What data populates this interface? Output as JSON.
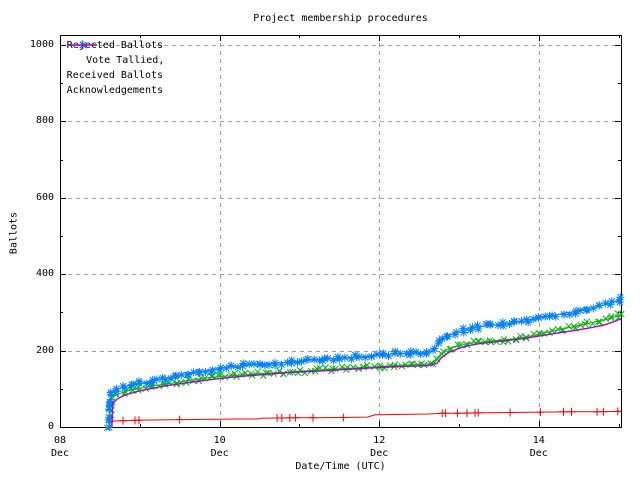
{
  "chart_data": {
    "type": "line",
    "title": "Project membership procedures",
    "xlabel": "Date/Time (UTC)",
    "ylabel": "Ballots",
    "x_unit": "day of December (UTC)",
    "xlim": [
      8,
      15.03
    ],
    "ylim": [
      0,
      1026
    ],
    "grid": true,
    "legend_position": "top-left-inside",
    "background_color": "#ffffff",
    "axis_color": "#000000",
    "grid_color": "#a0a0a0",
    "y_ticks": [
      {
        "v": 0,
        "label": "0"
      },
      {
        "v": 200,
        "label": "200"
      },
      {
        "v": 400,
        "label": "400"
      },
      {
        "v": 600,
        "label": "600"
      },
      {
        "v": 800,
        "label": "800"
      },
      {
        "v": 1000,
        "label": "1000"
      }
    ],
    "y_minor_ticks": [
      100,
      300,
      500,
      700,
      900
    ],
    "x_ticks": [
      {
        "v": 8,
        "line1": "08",
        "line2": "Dec"
      },
      {
        "v": 10,
        "line1": "10",
        "line2": "Dec"
      },
      {
        "v": 12,
        "line1": "12",
        "line2": "Dec"
      },
      {
        "v": 14,
        "line1": "14",
        "line2": "Dec"
      }
    ],
    "x_minor_ticks": [
      9,
      11,
      13,
      15
    ],
    "series": [
      {
        "name": "Rejected Ballots",
        "color": "#ff0000",
        "marker": "plus",
        "dense_markers": false,
        "points": [
          [
            8.62,
            0
          ],
          [
            8.63,
            14
          ],
          [
            8.7,
            16
          ],
          [
            8.9,
            17
          ],
          [
            9.0,
            18
          ],
          [
            9.4,
            19
          ],
          [
            9.8,
            20
          ],
          [
            10.2,
            21
          ],
          [
            10.48,
            21
          ],
          [
            10.52,
            23
          ],
          [
            10.9,
            24
          ],
          [
            11.2,
            24
          ],
          [
            11.6,
            25
          ],
          [
            11.85,
            26
          ],
          [
            11.95,
            32
          ],
          [
            12.3,
            33
          ],
          [
            12.62,
            34
          ],
          [
            12.8,
            36
          ],
          [
            13.0,
            36
          ],
          [
            13.22,
            37
          ],
          [
            13.64,
            38
          ],
          [
            14.05,
            39
          ],
          [
            14.44,
            40
          ],
          [
            14.8,
            40
          ],
          [
            15.03,
            41
          ]
        ],
        "marker_days": [
          8.79,
          8.94,
          8.99,
          9.5,
          10.72,
          10.78,
          10.88,
          10.95,
          11.17,
          11.55,
          12.79,
          12.83,
          12.98,
          13.1,
          13.2,
          13.24,
          13.64,
          14.02,
          14.31,
          14.41,
          14.73,
          14.81,
          14.99
        ]
      },
      {
        "name": "    Vote Tallied,",
        "color": "#00b800",
        "marker": "cross",
        "dense_markers": true,
        "points": [
          [
            8.61,
            0
          ],
          [
            8.63,
            45
          ],
          [
            8.64,
            72
          ],
          [
            8.7,
            84
          ],
          [
            8.8,
            92
          ],
          [
            8.9,
            97
          ],
          [
            9.0,
            101
          ],
          [
            9.15,
            107
          ],
          [
            9.3,
            112
          ],
          [
            9.45,
            116
          ],
          [
            9.6,
            121
          ],
          [
            9.75,
            126
          ],
          [
            9.9,
            130
          ],
          [
            10.0,
            132
          ],
          [
            10.2,
            135
          ],
          [
            10.4,
            138
          ],
          [
            10.6,
            141
          ],
          [
            10.8,
            143
          ],
          [
            11.0,
            146
          ],
          [
            11.2,
            148
          ],
          [
            11.4,
            151
          ],
          [
            11.6,
            153
          ],
          [
            11.8,
            156
          ],
          [
            12.0,
            158
          ],
          [
            12.2,
            161
          ],
          [
            12.4,
            163
          ],
          [
            12.55,
            164
          ],
          [
            12.66,
            166
          ],
          [
            12.72,
            180
          ],
          [
            12.8,
            196
          ],
          [
            12.9,
            207
          ],
          [
            13.0,
            213
          ],
          [
            13.1,
            218
          ],
          [
            13.25,
            222
          ],
          [
            13.4,
            225
          ],
          [
            13.55,
            228
          ],
          [
            13.7,
            231
          ],
          [
            13.85,
            236
          ],
          [
            14.0,
            243
          ],
          [
            14.15,
            250
          ],
          [
            14.3,
            257
          ],
          [
            14.45,
            263
          ],
          [
            14.6,
            270
          ],
          [
            14.75,
            277
          ],
          [
            14.9,
            285
          ],
          [
            15.0,
            291
          ],
          [
            15.03,
            294
          ]
        ]
      },
      {
        "name": "Received Ballots",
        "color": "#0080ff",
        "marker": "star",
        "dense_markers": true,
        "points": [
          [
            8.61,
            0
          ],
          [
            8.63,
            55
          ],
          [
            8.64,
            85
          ],
          [
            8.7,
            97
          ],
          [
            8.8,
            105
          ],
          [
            8.9,
            110
          ],
          [
            9.0,
            114
          ],
          [
            9.15,
            121
          ],
          [
            9.3,
            127
          ],
          [
            9.45,
            132
          ],
          [
            9.6,
            138
          ],
          [
            9.75,
            144
          ],
          [
            9.9,
            150
          ],
          [
            10.0,
            154
          ],
          [
            10.15,
            158
          ],
          [
            10.3,
            161
          ],
          [
            10.5,
            164
          ],
          [
            10.7,
            167
          ],
          [
            10.9,
            171
          ],
          [
            11.1,
            174
          ],
          [
            11.3,
            177
          ],
          [
            11.5,
            180
          ],
          [
            11.7,
            183
          ],
          [
            11.9,
            186
          ],
          [
            12.05,
            189
          ],
          [
            12.2,
            192
          ],
          [
            12.4,
            193
          ],
          [
            12.6,
            194
          ],
          [
            12.68,
            200
          ],
          [
            12.75,
            220
          ],
          [
            12.85,
            237
          ],
          [
            12.95,
            247
          ],
          [
            13.05,
            253
          ],
          [
            13.15,
            258
          ],
          [
            13.25,
            262
          ],
          [
            13.4,
            266
          ],
          [
            13.55,
            269
          ],
          [
            13.7,
            273
          ],
          [
            13.85,
            279
          ],
          [
            14.0,
            285
          ],
          [
            14.15,
            291
          ],
          [
            14.3,
            297
          ],
          [
            14.45,
            302
          ],
          [
            14.6,
            310
          ],
          [
            14.75,
            316
          ],
          [
            14.9,
            324
          ],
          [
            15.0,
            331
          ],
          [
            15.03,
            335
          ]
        ]
      },
      {
        "name": "Acknowledgements",
        "color": "#a800d8",
        "marker": "none",
        "dense_markers": false,
        "points": [
          [
            8.65,
            0
          ],
          [
            8.66,
            62
          ],
          [
            8.72,
            74
          ],
          [
            8.82,
            84
          ],
          [
            8.95,
            92
          ],
          [
            9.1,
            99
          ],
          [
            9.3,
            107
          ],
          [
            9.5,
            113
          ],
          [
            9.7,
            119
          ],
          [
            9.9,
            124
          ],
          [
            10.1,
            129
          ],
          [
            10.35,
            134
          ],
          [
            10.6,
            138
          ],
          [
            10.85,
            142
          ],
          [
            11.1,
            145
          ],
          [
            11.35,
            148
          ],
          [
            11.6,
            151
          ],
          [
            11.85,
            154
          ],
          [
            12.1,
            157
          ],
          [
            12.35,
            159
          ],
          [
            12.6,
            161
          ],
          [
            12.72,
            166
          ],
          [
            12.78,
            182
          ],
          [
            12.88,
            196
          ],
          [
            13.0,
            206
          ],
          [
            13.12,
            213
          ],
          [
            13.28,
            219
          ],
          [
            13.45,
            223
          ],
          [
            13.62,
            227
          ],
          [
            13.8,
            231
          ],
          [
            14.0,
            238
          ],
          [
            14.2,
            245
          ],
          [
            14.4,
            251
          ],
          [
            14.6,
            258
          ],
          [
            14.8,
            266
          ],
          [
            14.95,
            276
          ],
          [
            15.03,
            284
          ]
        ]
      }
    ]
  }
}
